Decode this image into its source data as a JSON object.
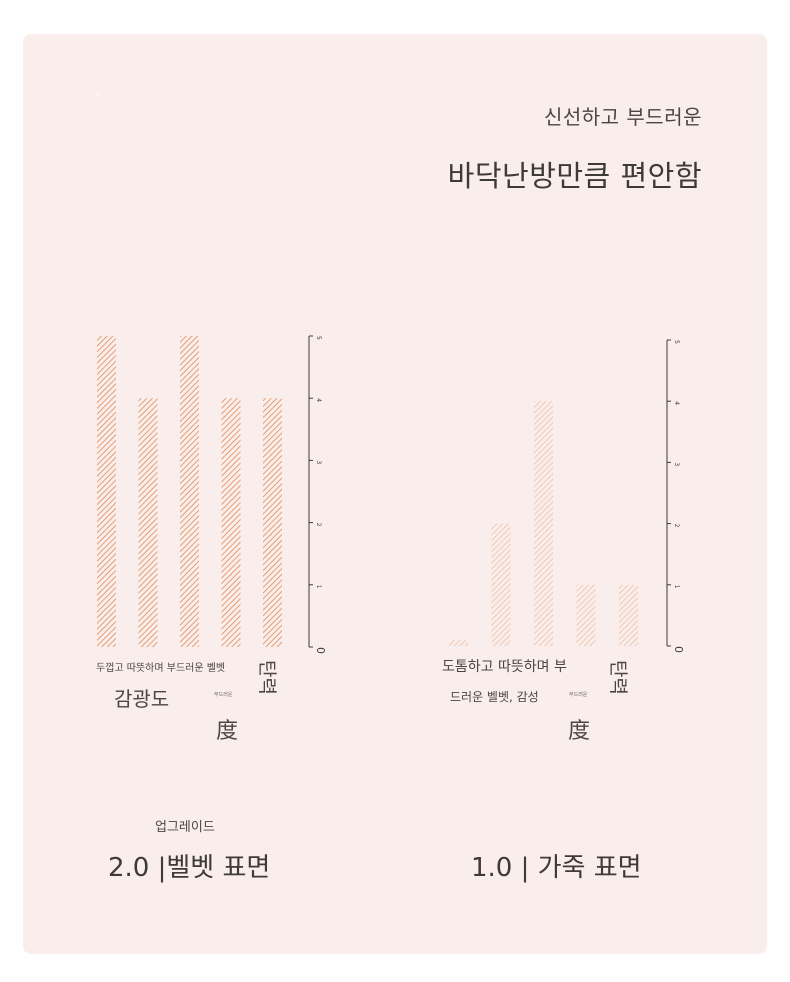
{
  "header": {
    "quote_mark": "\"",
    "subtitle": "신선하고 부드러운",
    "title": "바닥난방만큼 편안함"
  },
  "colors": {
    "background": "#f9eeeb",
    "left_bars": "#e08a55",
    "right_bars": "#efc0a4",
    "axis": "#3d3a38"
  },
  "chart_data": [
    {
      "type": "bar",
      "categories": [
        "두껍고 따뜻하며",
        "부드러운",
        "벨벳",
        "감광도",
        "탄력"
      ],
      "values": [
        5,
        4,
        5,
        4,
        4
      ],
      "ylim": [
        0,
        5
      ],
      "yticks": [
        "0",
        "1",
        "2",
        "3",
        "4",
        "5"
      ],
      "labels": {
        "line1": "두껍고 따뜻하며 부드러운 벨벳",
        "line2": "감광도",
        "tiny": "부드러운",
        "han": "度",
        "vertical": "탄력"
      }
    },
    {
      "type": "bar",
      "categories": [
        "도톰하고",
        "따뜻하며",
        "부드러운 벨벳",
        "감성",
        "탄력"
      ],
      "values": [
        0.1,
        2,
        4,
        1,
        1
      ],
      "ylim": [
        0,
        5
      ],
      "yticks": [
        "0",
        "1",
        "2",
        "3",
        "4",
        "5"
      ],
      "labels": {
        "line1": "도톰하고 따뜻하며 부",
        "line2": "드러운 벨벳, 감성",
        "tiny": "부드러운",
        "han": "度",
        "vertical": "탄력"
      }
    }
  ],
  "footer": {
    "upgrade": "업그레이드",
    "left_title": "2.0 |벨벳 표면",
    "right_title": "1.0 | 가죽 표면"
  }
}
